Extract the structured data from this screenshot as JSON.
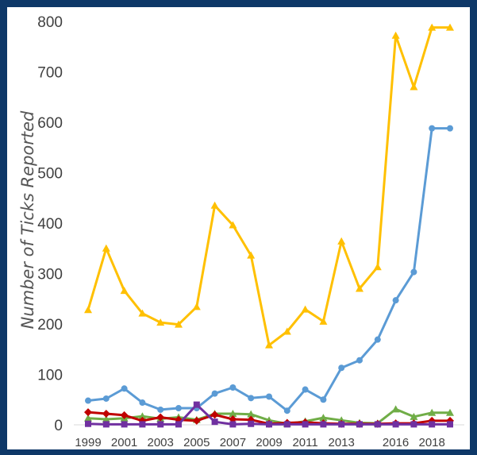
{
  "chart_data": {
    "type": "line",
    "title": "",
    "xlabel": "",
    "ylabel": "Number of Ticks Reported",
    "ylim": [
      0,
      800
    ],
    "yticks": [
      0,
      100,
      200,
      300,
      400,
      500,
      600,
      700,
      800
    ],
    "x": [
      1999,
      2000,
      2001,
      2002,
      2003,
      2004,
      2005,
      2006,
      2007,
      2008,
      2009,
      2010,
      2011,
      2012,
      2013,
      2014,
      2015,
      2016,
      2017,
      2018,
      2019
    ],
    "x_tick_labels": [
      "1999",
      "2001",
      "2003",
      "2005",
      "2007",
      "2009",
      "2011",
      "2013",
      "2016",
      "2018"
    ],
    "grid": false,
    "legend": "none",
    "series": [
      {
        "color": "#ffc000",
        "marker": "triangle",
        "values": [
          228,
          350,
          266,
          221,
          203,
          199,
          234,
          435,
          396,
          336,
          158,
          185,
          229,
          205,
          364,
          270,
          313,
          772,
          670,
          788,
          788
        ]
      },
      {
        "color": "#5b9bd5",
        "marker": "circle",
        "values": [
          48,
          52,
          72,
          44,
          30,
          33,
          33,
          62,
          74,
          53,
          56,
          28,
          70,
          50,
          113,
          128,
          169,
          247,
          303,
          588,
          588
        ]
      },
      {
        "color": "#70ad47",
        "marker": "triangle",
        "values": [
          13,
          11,
          13,
          17,
          12,
          15,
          10,
          22,
          22,
          21,
          9,
          2,
          7,
          14,
          9,
          4,
          3,
          31,
          16,
          24,
          24
        ]
      },
      {
        "color": "#c00000",
        "marker": "diamond",
        "values": [
          25,
          22,
          19,
          8,
          15,
          10,
          8,
          20,
          11,
          10,
          2,
          4,
          5,
          3,
          2,
          2,
          2,
          3,
          3,
          8,
          8
        ]
      },
      {
        "color": "#7030a0",
        "marker": "square",
        "values": [
          2,
          1,
          1,
          1,
          1,
          1,
          40,
          6,
          1,
          2,
          1,
          1,
          1,
          1,
          1,
          1,
          1,
          1,
          1,
          1,
          1
        ]
      }
    ]
  }
}
